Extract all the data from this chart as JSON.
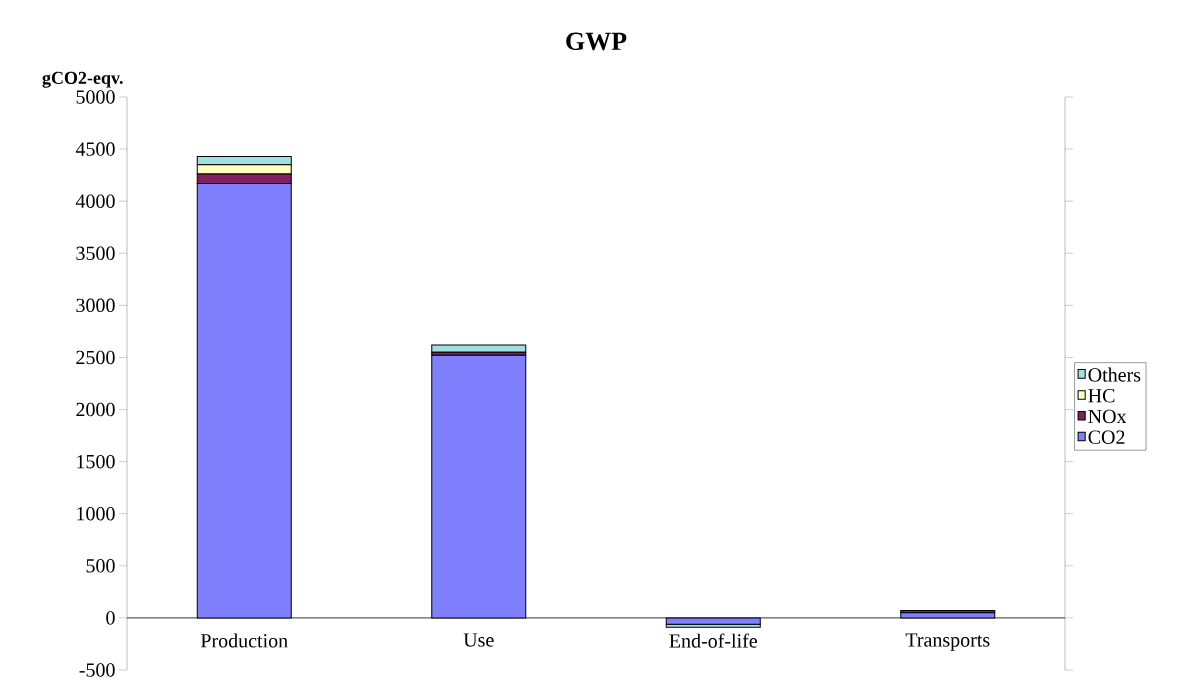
{
  "chart_data": {
    "type": "bar",
    "title": "GWP",
    "ylabel": "gCO2-eqv.",
    "stacked": true,
    "categories": [
      "Production",
      "Use",
      "End-of-life",
      "Transports"
    ],
    "series": [
      {
        "name": "CO2",
        "color": "#8080ff",
        "values": [
          4170,
          2520,
          -60,
          50
        ]
      },
      {
        "name": "NOx",
        "color": "#802060",
        "values": [
          90,
          30,
          0,
          20
        ]
      },
      {
        "name": "HC",
        "color": "#ffffc0",
        "values": [
          90,
          0,
          0,
          0
        ]
      },
      {
        "name": "Others",
        "color": "#a0e0e0",
        "values": [
          80,
          70,
          -30,
          0
        ]
      }
    ],
    "ylim": [
      -500,
      5000
    ],
    "yticks": [
      -500,
      0,
      500,
      1000,
      1500,
      2000,
      2500,
      3000,
      3500,
      4000,
      4500,
      5000
    ],
    "legend": "right"
  }
}
